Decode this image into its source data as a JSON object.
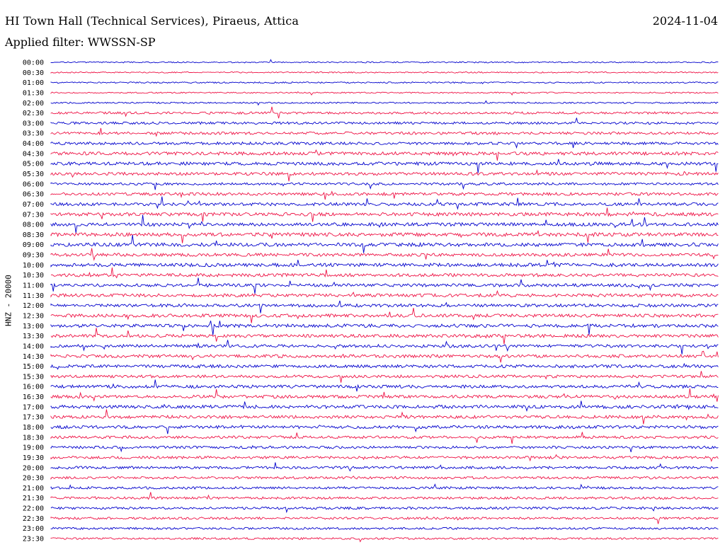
{
  "header": {
    "title": "HI Town Hall (Technical Services), Piraeus, Attica",
    "date": "2024-11-04",
    "filter": "Applied filter: WWSSN-SP"
  },
  "colors": {
    "blue": "#0000cc",
    "red": "#ee1144"
  },
  "chart_data": {
    "type": "line",
    "title": "HI Town Hall (Technical Services), Piraeus, Attica",
    "ylabel": "HNZ - 20000",
    "rows": [
      "00:00",
      "00:30",
      "01:00",
      "01:30",
      "02:00",
      "02:30",
      "03:00",
      "03:30",
      "04:00",
      "04:30",
      "05:00",
      "05:30",
      "06:00",
      "06:30",
      "07:00",
      "07:30",
      "08:00",
      "08:30",
      "09:00",
      "09:30",
      "10:00",
      "10:30",
      "11:00",
      "11:30",
      "12:00",
      "12:30",
      "13:00",
      "13:30",
      "14:00",
      "14:30",
      "15:00",
      "15:30",
      "16:00",
      "16:30",
      "17:00",
      "17:30",
      "18:00",
      "18:30",
      "19:00",
      "19:30",
      "20:00",
      "20:30",
      "21:00",
      "21:30",
      "22:00",
      "22:30",
      "23:00",
      "23:30"
    ],
    "activity": [
      0.15,
      0.12,
      0.18,
      0.14,
      0.2,
      0.45,
      0.5,
      0.55,
      0.6,
      0.75,
      0.75,
      0.7,
      0.5,
      0.65,
      0.7,
      0.85,
      0.8,
      0.9,
      0.85,
      0.7,
      0.8,
      0.75,
      0.7,
      0.75,
      0.7,
      0.75,
      0.8,
      0.75,
      0.7,
      0.75,
      0.7,
      0.65,
      0.7,
      0.7,
      0.8,
      0.7,
      0.7,
      0.6,
      0.55,
      0.55,
      0.55,
      0.5,
      0.5,
      0.5,
      0.5,
      0.45,
      0.4,
      0.35
    ],
    "series_colors": [
      "blue",
      "red"
    ]
  }
}
